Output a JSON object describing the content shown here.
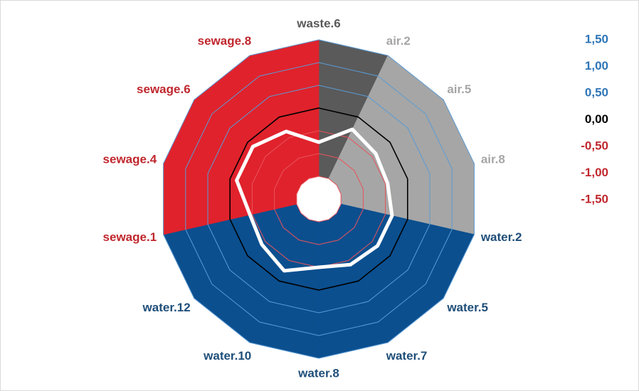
{
  "chart_data": {
    "type": "radar",
    "categories": [
      "waste.6",
      "air.2",
      "air.5",
      "air.8",
      "water.2",
      "water.5",
      "water.7",
      "water.8",
      "water.10",
      "water.12",
      "sewage.1",
      "sewage.4",
      "sewage.6",
      "sewage.8"
    ],
    "category_colors": [
      "#5a5a5a",
      "#a6a6a6",
      "#a6a6a6",
      "#a6a6a6",
      "#0b4f8f",
      "#0b4f8f",
      "#0b4f8f",
      "#0b4f8f",
      "#0b4f8f",
      "#0b4f8f",
      "#e0222c",
      "#e0222c",
      "#e0222c",
      "#e0222c"
    ],
    "label_colors": [
      "#595959",
      "#a6a6a6",
      "#a6a6a6",
      "#a6a6a6",
      "#1f4e79",
      "#1f4e79",
      "#1f4e79",
      "#1f4e79",
      "#1f4e79",
      "#1f4e79",
      "#c0272d",
      "#c0272d",
      "#c0272d",
      "#c0272d"
    ],
    "values": [
      -0.75,
      -0.3,
      -0.4,
      -0.45,
      -0.35,
      -0.35,
      -0.4,
      -0.5,
      -0.25,
      -0.4,
      -0.45,
      -0.15,
      -0.15,
      -0.35
    ],
    "line_color": "#ffffff",
    "ylim": [
      -2,
      1.5
    ],
    "yticks": [
      {
        "value": 1.5,
        "label": "1,50"
      },
      {
        "value": 1.0,
        "label": "1,00"
      },
      {
        "value": 0.5,
        "label": "0,50"
      },
      {
        "value": 0,
        "label": "0,00"
      },
      {
        "value": -0.5,
        "label": "-0,50"
      },
      {
        "value": -1.0,
        "label": "-1,00"
      },
      {
        "value": -1.5,
        "label": "-1,50"
      }
    ],
    "positive_color": "#2e75b6",
    "zero_color": "#000000",
    "negative_color": "#c0272d",
    "grid": true
  }
}
